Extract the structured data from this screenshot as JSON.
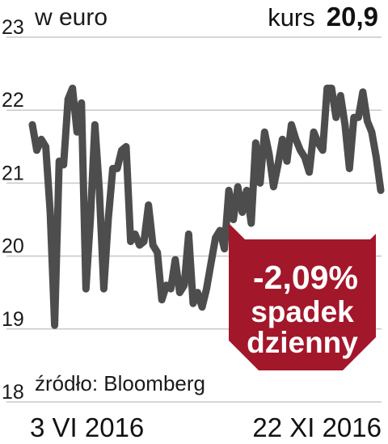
{
  "header": {
    "unit_label": "w euro",
    "kurs_label": "kurs",
    "kurs_value": "20,9"
  },
  "badge": {
    "change": "-2,09%",
    "line1": "spadek",
    "line2": "dzienny",
    "color": "#a3172b"
  },
  "source": "źródło: Bloomberg",
  "x_labels": {
    "start": "3 VI 2016",
    "end": "22 XI 2016"
  },
  "chart_data": {
    "type": "line",
    "title": "",
    "ylabel": "w euro",
    "xlabel": "",
    "ylim": [
      18,
      23
    ],
    "yticks": [
      {
        "value": 23,
        "label": "23"
      },
      {
        "value": 22,
        "label": "22"
      },
      {
        "value": 21,
        "label": "21"
      },
      {
        "value": 20,
        "label": "20"
      },
      {
        "value": 19,
        "label": "19"
      },
      {
        "value": 18,
        "label": "18"
      }
    ],
    "x_range": [
      "3 VI 2016",
      "22 XI 2016"
    ],
    "grid": true,
    "line_color": "#4d4d4d",
    "series": [
      {
        "values": [
          21.8,
          21.45,
          21.6,
          21.5,
          20.6,
          19.05,
          21.3,
          21.25,
          22.15,
          22.3,
          21.7,
          22.1,
          19.55,
          20.5,
          21.8,
          20.9,
          19.55,
          20.5,
          21.2,
          21.2,
          21.45,
          21.5,
          20.2,
          20.3,
          20.15,
          20.2,
          20.7,
          20.15,
          20.05,
          19.4,
          19.6,
          19.55,
          19.95,
          19.5,
          19.6,
          20.3,
          19.35,
          19.5,
          19.3,
          19.55,
          19.9,
          20.25,
          20.35,
          20.1,
          20.9,
          20.5,
          20.95,
          20.6,
          20.9,
          20.45,
          21.55,
          21.0,
          21.7,
          21.4,
          20.95,
          21.25,
          21.6,
          21.3,
          21.8,
          21.6,
          21.45,
          21.35,
          21.15,
          21.7,
          21.55,
          21.45,
          22.3,
          22.3,
          21.9,
          22.2,
          21.8,
          21.2,
          21.9,
          21.9,
          22.25,
          21.85,
          21.7,
          21.35,
          20.9
        ]
      }
    ]
  }
}
